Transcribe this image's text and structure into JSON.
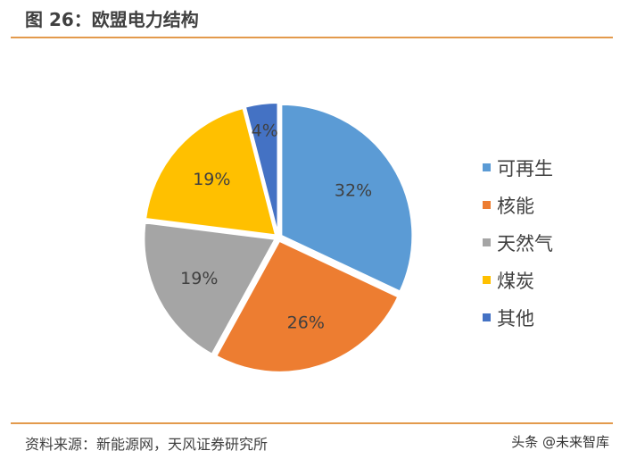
{
  "title": "图 26：欧盟电力结构",
  "source": "资料来源：新能源网，天风证券研究所",
  "watermark": "头条 @未来智库",
  "chart_data": {
    "type": "pie",
    "categories": [
      "可再生",
      "核能",
      "天然气",
      "煤炭",
      "其他"
    ],
    "values": [
      32,
      26,
      19,
      19,
      4
    ],
    "labels": [
      "32%",
      "26%",
      "19%",
      "19%",
      "4%"
    ],
    "colors": [
      "#5B9BD5",
      "#ED7D31",
      "#A5A5A5",
      "#FFC000",
      "#4472C4"
    ],
    "legend": "right"
  }
}
